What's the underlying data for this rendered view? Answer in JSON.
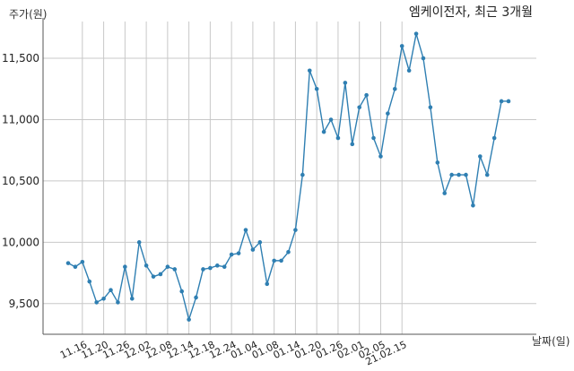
{
  "chart_data": {
    "type": "line",
    "title": "엠케이전자, 최근 3개월",
    "ylabel": "주가(원)",
    "xlabel": "날짜(일)",
    "ylim": [
      9250,
      11800
    ],
    "yticks": [
      9500,
      10000,
      10500,
      11000,
      11500
    ],
    "ytick_labels": [
      "9,500",
      "10,000",
      "10,500",
      "11,000",
      "11,500"
    ],
    "xtick_labels": [
      "11.16",
      "11.20",
      "11.26",
      "12.02",
      "12.08",
      "12.14",
      "12.18",
      "12.24",
      "01.04",
      "01.08",
      "01.14",
      "01.20",
      "01.26",
      "02.01",
      "02.05",
      "21.02.15"
    ],
    "xtick_positions": [
      2,
      5,
      8,
      11,
      14,
      17,
      20,
      23,
      26,
      29,
      32,
      35,
      38,
      41,
      44,
      47
    ],
    "grid": true,
    "line_color": "#2f7fb2",
    "series": [
      {
        "values": [
          9830,
          9800,
          9840,
          9680,
          9510,
          9540,
          9610,
          9510,
          9800,
          9540,
          10000,
          9810,
          9720,
          9740,
          9800,
          9780,
          9600,
          9370,
          9550,
          9780,
          9790,
          9810,
          9800,
          9900,
          9910,
          10100,
          9940,
          10000,
          9660,
          9850,
          9850,
          9920,
          10100,
          10550,
          11400,
          11250,
          10900,
          11000,
          10850,
          11300,
          10800,
          11100,
          11200,
          10850,
          10700,
          11050,
          11250,
          11600,
          11400,
          11700,
          11500,
          11100,
          10650,
          10400,
          10550,
          10550,
          10550,
          10300,
          10700,
          10550,
          10850,
          11150,
          11150
        ]
      }
    ]
  }
}
